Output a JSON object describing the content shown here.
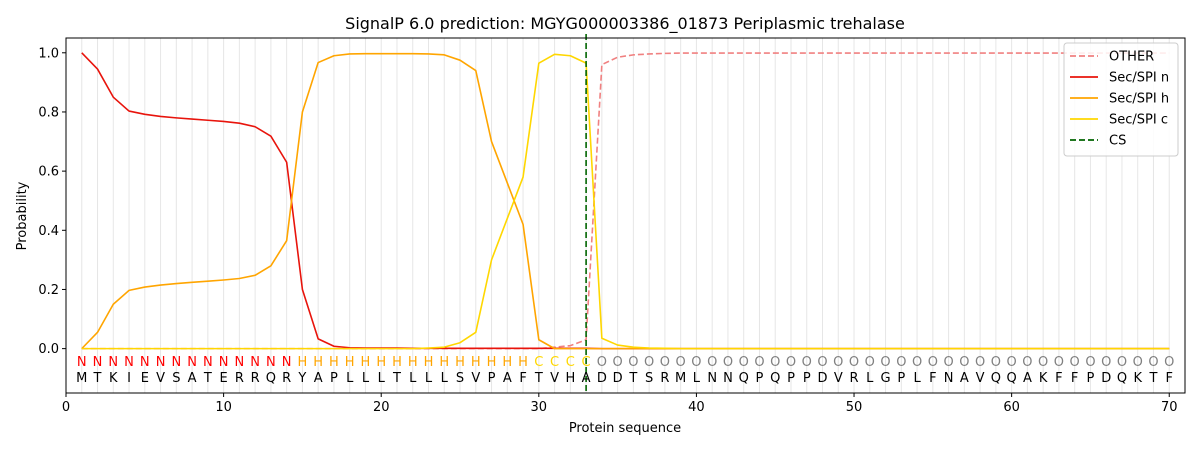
{
  "chart_data": {
    "type": "line",
    "title": "SignalP 6.0 prediction: MGYG000003386_01873 Periplasmic trehalase",
    "xlabel": "Protein sequence",
    "ylabel": "Probability",
    "xlim": [
      0,
      71
    ],
    "ylim": [
      -0.15,
      1.05
    ],
    "x_ticks": [
      "0",
      "10",
      "20",
      "30",
      "40",
      "50",
      "60",
      "70"
    ],
    "y_ticks": [
      "0.0",
      "0.2",
      "0.4",
      "0.6",
      "0.8",
      "1.0"
    ],
    "grid": "vertical lines at each residue",
    "legend_position": "top-right",
    "sequence": [
      "M",
      "T",
      "K",
      "I",
      "E",
      "V",
      "S",
      "A",
      "T",
      "E",
      "R",
      "R",
      "Q",
      "R",
      "Y",
      "A",
      "P",
      "L",
      "L",
      "L",
      "T",
      "L",
      "L",
      "L",
      "S",
      "V",
      "P",
      "A",
      "F",
      "T",
      "V",
      "H",
      "A",
      "D",
      "D",
      "T",
      "S",
      "R",
      "M",
      "L",
      "N",
      "N",
      "Q",
      "P",
      "Q",
      "P",
      "P",
      "D",
      "V",
      "R",
      "L",
      "G",
      "P",
      "L",
      "F",
      "N",
      "A",
      "V",
      "Q",
      "Q",
      "A",
      "K",
      "F",
      "F",
      "P",
      "D",
      "Q",
      "K",
      "T",
      "F"
    ],
    "labels": [
      "N",
      "N",
      "N",
      "N",
      "N",
      "N",
      "N",
      "N",
      "N",
      "N",
      "N",
      "N",
      "N",
      "N",
      "H",
      "H",
      "H",
      "H",
      "H",
      "H",
      "H",
      "H",
      "H",
      "H",
      "H",
      "H",
      "H",
      "H",
      "H",
      "C",
      "C",
      "C",
      "C",
      "O",
      "O",
      "O",
      "O",
      "O",
      "O",
      "O",
      "O",
      "O",
      "O",
      "O",
      "O",
      "O",
      "O",
      "O",
      "O",
      "O",
      "O",
      "O",
      "O",
      "O",
      "O",
      "O",
      "O",
      "O",
      "O",
      "O",
      "O",
      "O",
      "O",
      "O",
      "O",
      "O",
      "O",
      "O",
      "O",
      "O"
    ],
    "label_colors": {
      "N": "#ff0000",
      "H": "#ffa500",
      "C": "#ffd700",
      "O": "#808080"
    },
    "cleavage_site": 33,
    "series": [
      {
        "name": "OTHER",
        "color": "#f08080",
        "dash": "dashed",
        "values": [
          0,
          0,
          0,
          0,
          0,
          0,
          0,
          0,
          0,
          0,
          0,
          0,
          0,
          0,
          0,
          0,
          0,
          0,
          0,
          0,
          0,
          0,
          0,
          0,
          0,
          0,
          0,
          0,
          0,
          0,
          0.005,
          0.01,
          0.03,
          0.96,
          0.985,
          0.993,
          0.996,
          0.998,
          0.999,
          0.999,
          0.999,
          0.999,
          0.999,
          0.999,
          0.999,
          0.999,
          0.999,
          0.999,
          0.999,
          0.999,
          0.999,
          0.999,
          0.999,
          0.999,
          0.999,
          0.999,
          0.999,
          0.999,
          0.999,
          0.999,
          0.999,
          0.999,
          0.999,
          0.999,
          0.999,
          0.999,
          0.999,
          0.999,
          0.999,
          0.999
        ]
      },
      {
        "name": "Sec/SPI n",
        "color": "#e8140c",
        "dash": "solid",
        "values": [
          1.0,
          0.945,
          0.85,
          0.803,
          0.792,
          0.785,
          0.78,
          0.776,
          0.772,
          0.768,
          0.762,
          0.75,
          0.718,
          0.63,
          0.2,
          0.033,
          0.008,
          0.003,
          0.002,
          0.002,
          0.002,
          0.001,
          0.001,
          0.001,
          0.001,
          0.001,
          0.001,
          0.001,
          0.001,
          0.001,
          0.001,
          0.001,
          0.001,
          0.0,
          0.0,
          0.0,
          0.0,
          0.0,
          0.0,
          0.0,
          0.0,
          0.0,
          0.0,
          0.0,
          0.0,
          0.0,
          0.0,
          0.0,
          0.0,
          0.0,
          0.0,
          0.0,
          0.0,
          0.0,
          0.0,
          0.0,
          0.0,
          0.0,
          0.0,
          0.0,
          0.0,
          0.0,
          0.0,
          0.0,
          0.0,
          0.0,
          0.0,
          0.0,
          0.0,
          0.0
        ]
      },
      {
        "name": "Sec/SPI h",
        "color": "#ffa500",
        "dash": "solid",
        "values": [
          0.0,
          0.055,
          0.15,
          0.197,
          0.208,
          0.215,
          0.22,
          0.224,
          0.228,
          0.232,
          0.237,
          0.248,
          0.28,
          0.365,
          0.8,
          0.967,
          0.99,
          0.996,
          0.997,
          0.997,
          0.997,
          0.997,
          0.996,
          0.993,
          0.975,
          0.94,
          0.7,
          0.56,
          0.42,
          0.03,
          0.0,
          0.0,
          0.0,
          0.0,
          0.0,
          0.0,
          0.0,
          0.0,
          0.0,
          0.0,
          0.0,
          0.0,
          0.0,
          0.0,
          0.0,
          0.0,
          0.0,
          0.0,
          0.0,
          0.0,
          0.0,
          0.0,
          0.0,
          0.0,
          0.0,
          0.0,
          0.0,
          0.0,
          0.0,
          0.0,
          0.0,
          0.0,
          0.0,
          0.0,
          0.0,
          0.0,
          0.0,
          0.0,
          0.0,
          0.0
        ]
      },
      {
        "name": "Sec/SPI c",
        "color": "#ffd700",
        "dash": "solid",
        "values": [
          0.0,
          0.0,
          0.0,
          0.0,
          0.0,
          0.0,
          0.0,
          0.0,
          0.0,
          0.0,
          0.0,
          0.0,
          0.0,
          0.0,
          0.0,
          0.0,
          0.0,
          0.0,
          0.0,
          0.0,
          0.0,
          0.0,
          0.002,
          0.005,
          0.02,
          0.055,
          0.3,
          0.44,
          0.58,
          0.965,
          0.995,
          0.99,
          0.965,
          0.035,
          0.012,
          0.005,
          0.002,
          0.001,
          0.0,
          0.0,
          0.0,
          0.0,
          0.0,
          0.0,
          0.0,
          0.0,
          0.0,
          0.0,
          0.0,
          0.0,
          0.0,
          0.0,
          0.0,
          0.0,
          0.0,
          0.0,
          0.0,
          0.0,
          0.0,
          0.0,
          0.0,
          0.0,
          0.0,
          0.0,
          0.0,
          0.0,
          0.0,
          0.0,
          0.0,
          0.0
        ]
      }
    ],
    "cs_series": {
      "name": "CS",
      "color": "#006400",
      "dash": "dashed"
    }
  }
}
